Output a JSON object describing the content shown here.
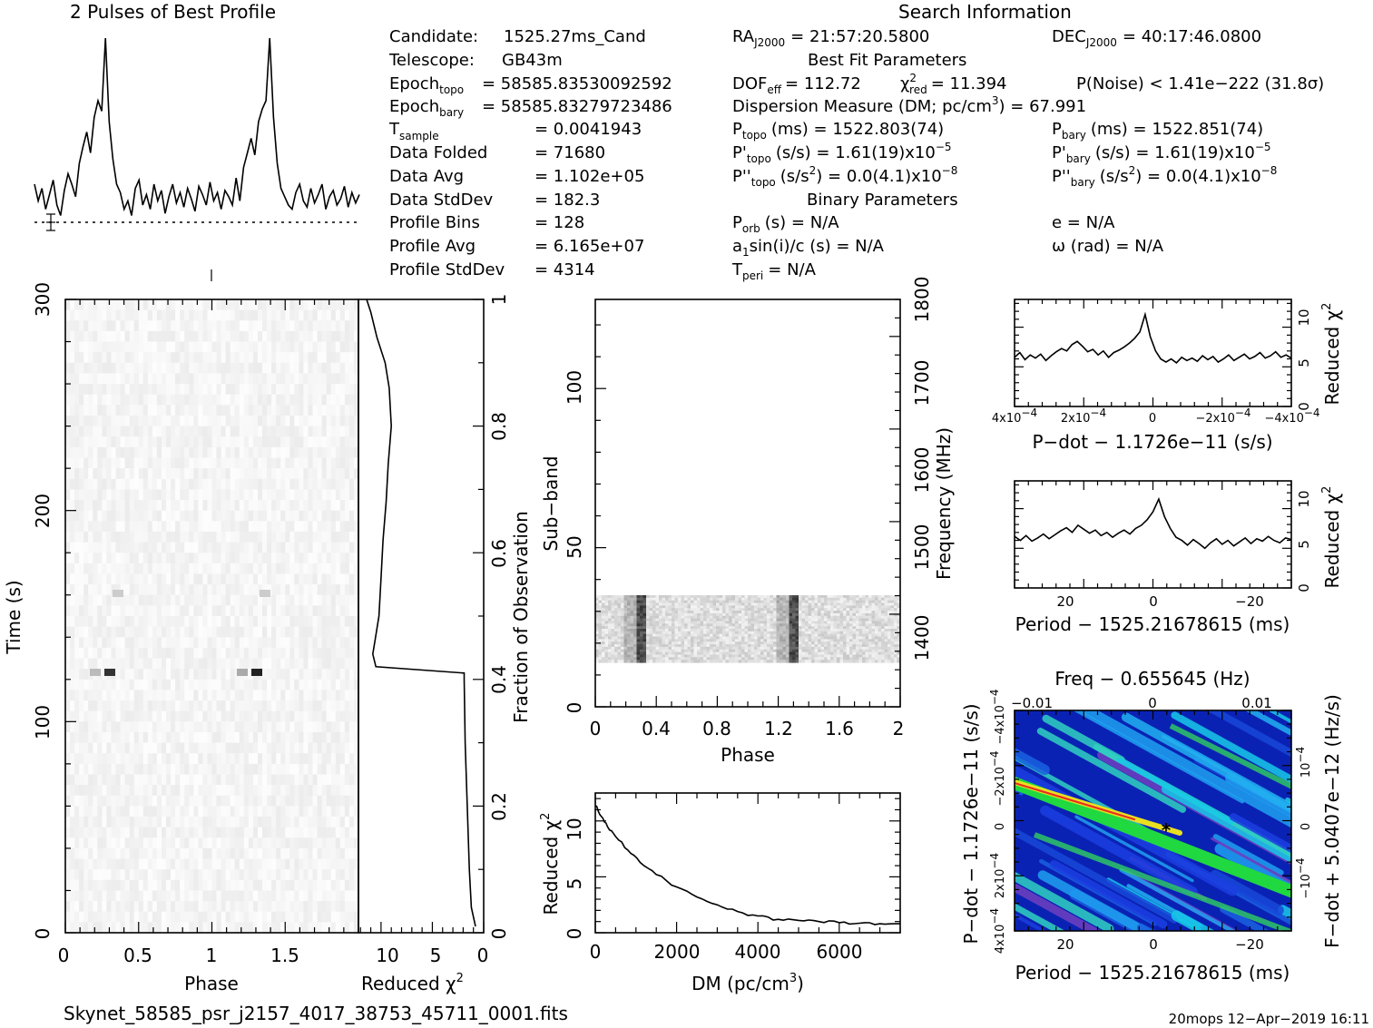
{
  "profile": {
    "title": "2 Pulses of Best Profile"
  },
  "info": {
    "search_title": "Search Information",
    "candidate_label": "Candidate:",
    "candidate": "1525.27ms_Cand",
    "telescope_label": "Telescope:",
    "telescope": "GB43m",
    "epoch_topo_base": "Epoch",
    "epoch_topo_sub": "topo",
    "epoch_topo_val": "= 58585.83530092592",
    "epoch_bary_base": "Epoch",
    "epoch_bary_sub": "bary",
    "epoch_bary_val": "= 58585.83279723486",
    "tsample_base": "T",
    "tsample_sub": "sample",
    "tsample_val": "=  0.0041943",
    "data_folded": "Data Folded",
    "data_folded_val": "=  71680",
    "data_avg": "Data Avg",
    "data_avg_val": "=  1.102e+05",
    "data_std": "Data StdDev",
    "data_std_val": "=  182.3",
    "prof_bins": "Profile Bins",
    "prof_bins_val": "=  128",
    "prof_avg": "Profile Avg",
    "prof_avg_val": "=  6.165e+07",
    "prof_std": "Profile StdDev",
    "prof_std_val": "=  4314",
    "ra_base": "RA",
    "ra_sub": "J2000",
    "ra_val": "= 21:57:20.5800",
    "dec_base": "DEC",
    "dec_sub": "J2000",
    "dec_val": "= 40:17:46.0800",
    "best_fit": "Best Fit Parameters",
    "dof_base": "DOF",
    "dof_sub": "eff",
    "dof_val": "= 112.72",
    "chi_base": "χ",
    "chi_sup": "2",
    "chi_sub": "red",
    "chi_val": "= 11.394",
    "pnoise": "P(Noise) < 1.41e−222   (31.8σ)",
    "dm_text": "Dispersion Measure (DM; pc/cm",
    "dm_sup": "3",
    "dm_val": ") = 67.991",
    "ptopo_base": "P",
    "ptopo_sub": "topo",
    "ptopo_val": "(ms) =  1522.803(74)",
    "pbary_base": "P",
    "pbary_sub": "bary",
    "pbary_val": "(ms) =  1522.851(74)",
    "pdtopo_base": "P'",
    "pdtopo_sub": "topo",
    "pdtopo_val": "(s/s) =  1.61(19)x10",
    "pdtopo_exp": "−5",
    "pdbary_base": "P'",
    "pdbary_sub": "bary",
    "pdbary_val": "(s/s) =  1.61(19)x10",
    "pdbary_exp": "−5",
    "pddtopo_base": "P''",
    "pddtopo_sub": "topo",
    "pddtopo_val": "(s/s",
    "pddtopo_sup": "2",
    "pddtopo_val2": ") = 0.0(4.1)x10",
    "pddtopo_exp": "−8",
    "pddbary_base": "P''",
    "pddbary_sub": "bary",
    "pddbary_val": "(s/s",
    "pddbary_sup": "2",
    "pddbary_val2": ") = 0.0(4.1)x10",
    "pddbary_exp": "−8",
    "binary_title": "Binary Parameters",
    "porb_base": "P",
    "porb_sub": "orb",
    "porb_val": "(s) = N/A",
    "ecc": "e = N/A",
    "a1_base": "a",
    "a1_sub": "1",
    "a1_val": "sin(i)/c (s) = N/A",
    "omega": "ω (rad) = N/A",
    "tperi_base": "T",
    "tperi_sub": "peri",
    "tperi_val": "= N/A"
  },
  "footer": {
    "filename": "Skynet_58585_psr_j2157_4017_38753_45711_0001.fits",
    "stamp": "20mops 12−Apr−2019 16:11"
  },
  "chart_data": [
    {
      "type": "line",
      "id": "profile",
      "title": "2 Pulses of Best Profile",
      "x": "phase 0–2 (two pulses)",
      "series": [
        {
          "values": [
            0.3,
            0.22,
            0.28,
            0.18,
            0.25,
            0.32,
            0.2,
            0.15,
            0.27,
            0.35,
            0.3,
            0.24,
            0.4,
            0.48,
            0.55,
            0.45,
            0.62,
            0.7,
            0.65,
            1.0,
            0.6,
            0.42,
            0.3,
            0.26,
            0.18,
            0.22,
            0.15,
            0.28,
            0.32,
            0.2,
            0.25,
            0.18,
            0.3,
            0.22,
            0.27,
            0.16,
            0.24,
            0.3,
            0.21,
            0.26,
            0.19,
            0.28,
            0.23,
            0.17,
            0.29,
            0.25,
            0.2,
            0.31,
            0.22,
            0.26,
            0.18,
            0.27,
            0.24,
            0.2,
            0.33,
            0.22,
            0.38,
            0.45,
            0.52,
            0.44,
            0.6,
            0.66,
            0.7,
            1.0,
            0.62,
            0.4,
            0.28,
            0.24,
            0.2,
            0.18,
            0.26,
            0.3,
            0.22,
            0.19,
            0.28,
            0.21,
            0.25,
            0.3,
            0.18,
            0.24,
            0.27,
            0.2,
            0.23,
            0.29,
            0.19,
            0.26,
            0.21,
            0.25
          ]
        }
      ]
    },
    {
      "type": "heatmap",
      "id": "time-phase",
      "xlabel": "Phase",
      "ylabel": "Time (s)",
      "xlim": [
        0,
        2
      ],
      "ylim": [
        0,
        300
      ],
      "x_ticks": [
        "0",
        "0.5",
        "1",
        "1.5"
      ],
      "y_ticks": [
        "0",
        "100",
        "200",
        "300"
      ]
    },
    {
      "type": "line",
      "id": "time-chi2",
      "xlabel": "Reduced χ",
      "xlabel_sup": "2",
      "ylabel": "Fraction of Observation",
      "x_ticks": [
        "10",
        "5",
        "0"
      ],
      "y_ticks": [
        "0",
        "0.2",
        "0.4",
        "0.6",
        "0.8",
        "1"
      ],
      "points": [
        [
          0.8,
          0.01
        ],
        [
          1.2,
          0.04
        ],
        [
          1.4,
          0.1
        ],
        [
          1.6,
          0.2
        ],
        [
          1.8,
          0.3
        ],
        [
          1.9,
          0.4
        ],
        [
          1.9,
          0.41
        ],
        [
          10.5,
          0.42
        ],
        [
          10.8,
          0.44
        ],
        [
          10.6,
          0.46
        ],
        [
          10.2,
          0.5
        ],
        [
          10.0,
          0.56
        ],
        [
          9.8,
          0.62
        ],
        [
          9.5,
          0.68
        ],
        [
          9.3,
          0.74
        ],
        [
          9.0,
          0.8
        ],
        [
          9.2,
          0.86
        ],
        [
          9.6,
          0.9
        ],
        [
          10.4,
          0.94
        ],
        [
          11.0,
          0.98
        ],
        [
          11.4,
          1.0
        ]
      ]
    },
    {
      "type": "heatmap",
      "id": "subband-phase",
      "xlabel": "Phase",
      "ylabel": "Sub−band",
      "y2label": "Frequency (MHz)",
      "xlim": [
        0,
        2
      ],
      "ylim": [
        0,
        128
      ],
      "x_ticks": [
        "0",
        "0.4",
        "0.8",
        "1.2",
        "1.6",
        "2"
      ],
      "y_ticks": [
        "0",
        "50",
        "100"
      ],
      "y2_ticks": [
        "1400",
        "1500",
        "1600",
        "1700",
        "1800"
      ]
    },
    {
      "type": "line",
      "id": "dm-chi2",
      "xlabel": "DM (pc/cm",
      "xlabel_sup": "3",
      "xlabel_end": ")",
      "ylabel": "Reduced χ",
      "ylabel_sup": "2",
      "xlim": [
        0,
        7500
      ],
      "ylim": [
        0,
        12.5
      ],
      "x_ticks": [
        "0",
        "2000",
        "4000",
        "6000"
      ],
      "y_ticks": [
        "0",
        "5",
        "10"
      ],
      "points": [
        [
          0,
          11.4
        ],
        [
          150,
          10.4
        ],
        [
          300,
          9.5
        ],
        [
          500,
          8.6
        ],
        [
          800,
          7.4
        ],
        [
          1100,
          6.3
        ],
        [
          1500,
          5.2
        ],
        [
          2000,
          4.1
        ],
        [
          2500,
          3.2
        ],
        [
          3000,
          2.5
        ],
        [
          3500,
          1.9
        ],
        [
          4000,
          1.5
        ],
        [
          4500,
          1.2
        ],
        [
          5000,
          1.1
        ],
        [
          5500,
          1.0
        ],
        [
          6000,
          0.9
        ],
        [
          6500,
          0.85
        ],
        [
          7000,
          0.8
        ],
        [
          7500,
          0.8
        ]
      ]
    },
    {
      "type": "line",
      "id": "pdot-chi2",
      "xlabel": "P−dot − 1.1726e−11 (s/s)",
      "ylabel": "Reduced χ",
      "ylabel_sup": "2",
      "y_ticks": [
        "0",
        "5",
        "10"
      ],
      "x_ticks": [
        "4x10",
        "2x10",
        "0",
        "−2x10",
        "−4x10"
      ],
      "x_tick_exp": "−4",
      "values": [
        6.2,
        6.8,
        5.9,
        6.5,
        6.1,
        6.6,
        5.8,
        6.4,
        6.9,
        7.3,
        7.0,
        7.8,
        8.2,
        7.6,
        6.9,
        7.2,
        6.5,
        7.0,
        6.2,
        6.8,
        7.1,
        7.5,
        8.0,
        8.6,
        9.4,
        11.6,
        8.8,
        7.0,
        6.0,
        5.6,
        6.0,
        5.5,
        6.2,
        5.8,
        6.1,
        5.7,
        6.4,
        5.9,
        6.3,
        5.6,
        6.0,
        6.5,
        5.8,
        6.2,
        6.6,
        6.0,
        6.3,
        6.8,
        6.1,
        6.4,
        6.9,
        6.2,
        6.5,
        6.1
      ]
    },
    {
      "type": "line",
      "id": "period-chi2",
      "xlabel": "Period − 1525.21678615 (ms)",
      "ylabel": "Reduced χ",
      "ylabel_sup": "2",
      "y_ticks": [
        "0",
        "5",
        "10"
      ],
      "x_ticks": [
        "20",
        "0",
        "−20"
      ],
      "values": [
        6.5,
        6.0,
        6.6,
        5.9,
        6.3,
        6.8,
        6.2,
        6.7,
        7.2,
        7.6,
        7.0,
        7.9,
        7.4,
        6.9,
        7.3,
        6.6,
        7.0,
        6.4,
        6.9,
        7.3,
        6.8,
        7.5,
        7.9,
        8.6,
        9.6,
        11.2,
        9.0,
        7.5,
        6.4,
        6.0,
        5.4,
        6.1,
        5.6,
        5.0,
        5.7,
        6.2,
        5.5,
        6.0,
        5.3,
        5.8,
        6.3,
        5.6,
        6.2,
        5.9,
        6.5,
        6.0,
        5.7,
        6.3,
        6.1
      ]
    },
    {
      "type": "heatmap",
      "id": "period-pdot",
      "title": "Freq − 0.655645 (Hz)",
      "xlabel": "Period − 1525.21678615 (ms)",
      "ylabel": "P−dot − 1.1726e−11 (s/s)",
      "y2label": "F−dot + 5.0407e−12 (Hz/s)",
      "x_ticks": [
        "20",
        "0",
        "−20"
      ],
      "x2_ticks": [
        "−0.01",
        "0",
        "0.01"
      ],
      "y_ticks": [
        "4x10",
        "2x10",
        "0",
        "−2x10",
        "−4x10"
      ],
      "y_tick_exp": "−4",
      "y2_ticks": [
        "−10",
        "0",
        "10"
      ],
      "y2_tick_exp": "−4"
    }
  ]
}
